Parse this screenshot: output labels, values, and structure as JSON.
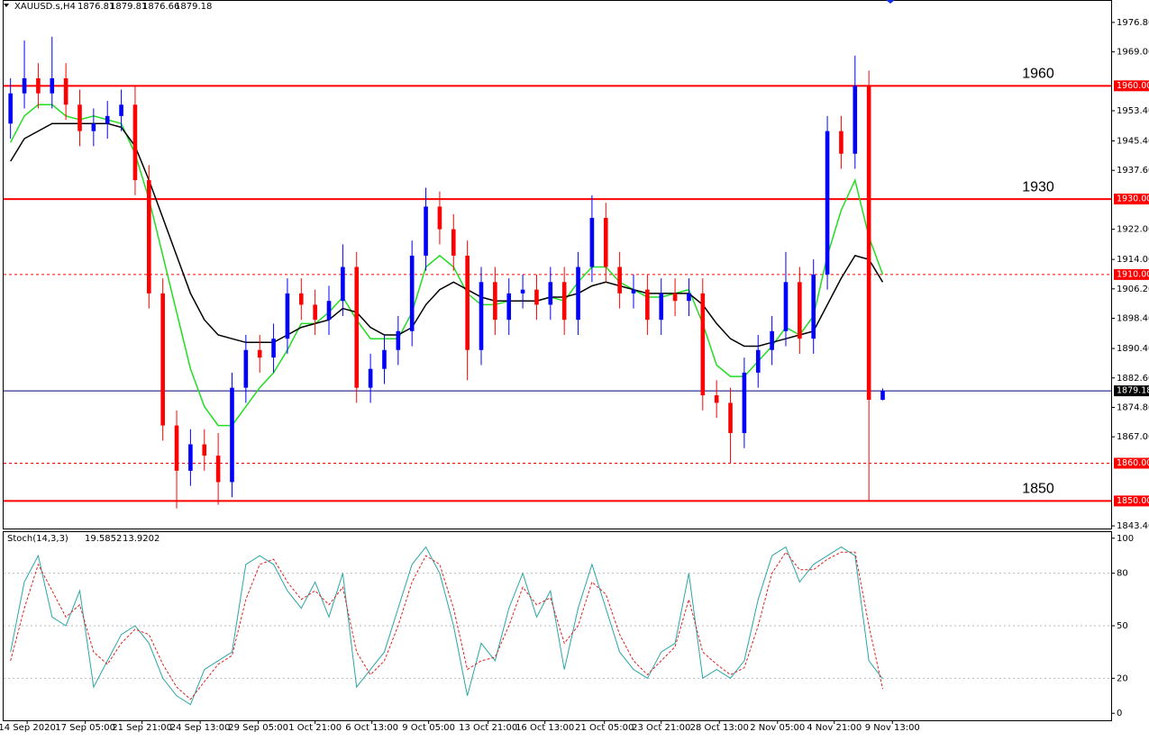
{
  "chart_data": [
    {
      "type": "candlestick",
      "title": "XAUUSD.s,H4",
      "open": [
        1950,
        1958,
        1962,
        1958,
        1962,
        1955,
        1948,
        1950,
        1952,
        1955,
        1935,
        1905,
        1870,
        1858,
        1865,
        1862,
        1855,
        1880,
        1890,
        1888,
        1893,
        1905,
        1902,
        1898,
        1903,
        1912,
        1880,
        1885,
        1890,
        1895,
        1915,
        1928,
        1922,
        1915,
        1890,
        1908,
        1898,
        1905,
        1906,
        1902,
        1908,
        1898,
        1912,
        1925,
        1912,
        1905,
        1906,
        1898,
        1905,
        1903,
        1905,
        1878,
        1876,
        1868,
        1884,
        1890,
        1895,
        1908,
        1893,
        1910,
        1948,
        1942,
        1960,
        1876.81
      ],
      "high": [
        1962,
        1972,
        1966,
        1973,
        1966,
        1959,
        1954,
        1956,
        1959,
        1960,
        1939,
        1909,
        1874,
        1869,
        1869,
        1868,
        1884,
        1894,
        1894,
        1897,
        1909,
        1909,
        1906,
        1907,
        1918,
        1916,
        1889,
        1894,
        1899,
        1919,
        1933,
        1932,
        1926,
        1919,
        1912,
        1912,
        1909,
        1910,
        1910,
        1912,
        1912,
        1916,
        1931,
        1929,
        1916,
        1910,
        1910,
        1909,
        1909,
        1909,
        1909,
        1882,
        1880,
        1888,
        1894,
        1899,
        1916,
        1912,
        1914,
        1952,
        1952,
        1968,
        1964,
        1879.81
      ],
      "low": [
        1946,
        1954,
        1954,
        1954,
        1951,
        1944,
        1944,
        1946,
        1948,
        1931,
        1901,
        1866,
        1848,
        1854,
        1858,
        1849,
        1851,
        1876,
        1884,
        1884,
        1889,
        1898,
        1894,
        1894,
        1899,
        1876,
        1876,
        1881,
        1886,
        1891,
        1911,
        1918,
        1911,
        1882,
        1886,
        1894,
        1894,
        1901,
        1898,
        1898,
        1894,
        1894,
        1908,
        1908,
        1901,
        1901,
        1894,
        1894,
        1899,
        1899,
        1874,
        1872,
        1860,
        1864,
        1880,
        1886,
        1891,
        1889,
        1889,
        1906,
        1938,
        1938,
        1850,
        1876.66
      ],
      "close": [
        1958,
        1962,
        1958,
        1962,
        1955,
        1948,
        1950,
        1952,
        1955,
        1935,
        1905,
        1870,
        1858,
        1865,
        1862,
        1855,
        1880,
        1890,
        1888,
        1893,
        1905,
        1902,
        1898,
        1903,
        1912,
        1880,
        1885,
        1890,
        1895,
        1915,
        1928,
        1922,
        1915,
        1890,
        1908,
        1898,
        1905,
        1906,
        1902,
        1908,
        1898,
        1912,
        1925,
        1912,
        1905,
        1906,
        1898,
        1905,
        1903,
        1905,
        1878,
        1876,
        1868,
        1884,
        1890,
        1895,
        1908,
        1893,
        1910,
        1948,
        1942,
        1960,
        1876.81,
        1879.18
      ],
      "up_color": "#0000ff",
      "down_color": "#ff0000",
      "series": [
        {
          "color": "#22dd22",
          "values": [
            1945,
            1952,
            1955,
            1955,
            1952,
            1951,
            1952,
            1951,
            1950,
            1942,
            1930,
            1915,
            1900,
            1885,
            1875,
            1870,
            1870,
            1875,
            1880,
            1884,
            1890,
            1897,
            1897,
            1900,
            1904,
            1898,
            1893,
            1893,
            1893,
            1900,
            1912,
            1915,
            1912,
            1905,
            1902,
            1902,
            1903,
            1903,
            1903,
            1904,
            1903,
            1908,
            1912,
            1912,
            1908,
            1906,
            1904,
            1904,
            1905,
            1906,
            1897,
            1886,
            1883,
            1883,
            1887,
            1891,
            1896,
            1894,
            1899,
            1915,
            1927,
            1935,
            1920,
            1910
          ]
        },
        {
          "color": "#000000",
          "values": [
            1940,
            1946,
            1948,
            1950,
            1950,
            1950,
            1950,
            1950,
            1949,
            1944,
            1935,
            1925,
            1915,
            1905,
            1898,
            1894,
            1893,
            1892,
            1892,
            1892,
            1894,
            1896,
            1897,
            1898,
            1901,
            1900,
            1896,
            1894,
            1894,
            1896,
            1902,
            1906,
            1908,
            1906,
            1904,
            1903,
            1903,
            1903,
            1903,
            1904,
            1904,
            1905,
            1907,
            1908,
            1907,
            1906,
            1905,
            1905,
            1905,
            1905,
            1902,
            1897,
            1893,
            1891,
            1891,
            1892,
            1893,
            1894,
            1895,
            1902,
            1909,
            1915,
            1914,
            1908
          ]
        }
      ],
      "hlines": [
        {
          "value": 1960,
          "label": "1960",
          "badge": "1960.00",
          "style": "solid",
          "color": "#ff0000"
        },
        {
          "value": 1930,
          "label": "1930",
          "badge": "1930.00",
          "style": "solid",
          "color": "#ff0000"
        },
        {
          "value": 1910,
          "badge": "1910.00",
          "style": "dashed",
          "color": "#ff0000"
        },
        {
          "value": 1860,
          "badge": "1860.00",
          "style": "dashed",
          "color": "#ff0000"
        },
        {
          "value": 1850,
          "label": "1850",
          "badge": "1850.00",
          "style": "solid",
          "color": "#ff0000"
        },
        {
          "value": 1879.18,
          "style": "solid",
          "color": "#000080"
        }
      ],
      "ylim": [
        1842.7,
        1982.5
      ],
      "yticks": [
        {
          "value": 1976.8,
          "label": "1976.80"
        },
        {
          "value": 1969,
          "label": "1969.00"
        },
        {
          "value": 1953.4,
          "label": "1953.40"
        },
        {
          "value": 1945.4,
          "label": "1945.40"
        },
        {
          "value": 1937.6,
          "label": "1937.60"
        },
        {
          "value": 1922,
          "label": "1922.00"
        },
        {
          "value": 1914,
          "label": "1914.00"
        },
        {
          "value": 1906.2,
          "label": "1906.20"
        },
        {
          "value": 1898.4,
          "label": "1898.40"
        },
        {
          "value": 1890.4,
          "label": "1890.40"
        },
        {
          "value": 1882.6,
          "label": "1882.60"
        },
        {
          "value": 1874.8,
          "label": "1874.80"
        },
        {
          "value": 1867,
          "label": "1867.00"
        },
        {
          "value": 1843.4,
          "label": "1843.40"
        }
      ],
      "xlim": [
        -0.5,
        79.5
      ],
      "xticks": [
        {
          "value": 1.2,
          "label": "14 Sep 2020"
        },
        {
          "value": 5.4,
          "label": "17 Sep 05:00"
        },
        {
          "value": 9.5,
          "label": "21 Sep 21:00"
        },
        {
          "value": 13.7,
          "label": "24 Sep 13:00"
        },
        {
          "value": 17.9,
          "label": "29 Sep 05:00"
        },
        {
          "value": 22,
          "label": "1 Oct 21:00"
        },
        {
          "value": 26.1,
          "label": "6 Oct 13:00"
        },
        {
          "value": 30.2,
          "label": "9 Oct 05:00"
        },
        {
          "value": 34.5,
          "label": "13 Oct 21:00"
        },
        {
          "value": 38.6,
          "label": "16 Oct 13:00"
        },
        {
          "value": 42.9,
          "label": "21 Oct 05:00"
        },
        {
          "value": 47,
          "label": "23 Oct 21:00"
        },
        {
          "value": 51.2,
          "label": "28 Oct 13:00"
        },
        {
          "value": 55.4,
          "label": "2 Nov 05:00"
        },
        {
          "value": 59.5,
          "label": "4 Nov 21:00"
        },
        {
          "value": 63.7,
          "label": "9 Nov 13:00"
        }
      ]
    },
    {
      "type": "line",
      "title": "Stoch(14,3,3)",
      "series": [
        {
          "color": "#2aa6a6",
          "style": "solid",
          "values": [
            35,
            75,
            90,
            55,
            50,
            70,
            15,
            30,
            45,
            50,
            40,
            20,
            10,
            5,
            25,
            30,
            35,
            85,
            90,
            85,
            70,
            60,
            75,
            55,
            80,
            15,
            25,
            35,
            60,
            85,
            95,
            80,
            50,
            10,
            40,
            30,
            60,
            80,
            55,
            70,
            25,
            60,
            85,
            60,
            35,
            25,
            20,
            35,
            40,
            80,
            20,
            25,
            20,
            30,
            65,
            90,
            95,
            75,
            85,
            90,
            95,
            90,
            30,
            19.5852
          ]
        },
        {
          "color": "#dd2222",
          "style": "dashed",
          "values": [
            30,
            60,
            85,
            70,
            55,
            62,
            35,
            28,
            40,
            48,
            45,
            28,
            15,
            8,
            18,
            28,
            33,
            65,
            85,
            88,
            75,
            65,
            70,
            62,
            72,
            35,
            22,
            30,
            50,
            75,
            90,
            85,
            60,
            25,
            30,
            32,
            50,
            72,
            62,
            66,
            40,
            50,
            75,
            68,
            45,
            30,
            22,
            30,
            38,
            65,
            35,
            28,
            22,
            26,
            50,
            80,
            92,
            82,
            82,
            88,
            92,
            92,
            50,
            13.9202
          ]
        }
      ],
      "levels": [
        80,
        50,
        20
      ],
      "ylim": [
        -4,
        104
      ],
      "yticks": [
        0,
        20,
        50,
        80,
        100
      ]
    }
  ]
}
